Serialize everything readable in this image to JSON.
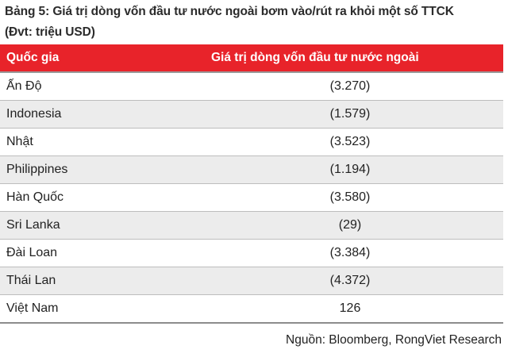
{
  "title_line1": "Bảng 5: Giá trị dòng vốn đầu tư nước ngoài bơm vào/rút ra khỏi một số TTCK",
  "title_line2": "(Đvt: triệu USD)",
  "table": {
    "headers": [
      "Quốc gia",
      "Giá trị dòng vốn đầu tư nước ngoài"
    ],
    "rows": [
      {
        "country": "Ấn Độ",
        "value": "(3.270)"
      },
      {
        "country": "Indonesia",
        "value": "(1.579)"
      },
      {
        "country": "Nhật",
        "value": "(3.523)"
      },
      {
        "country": "Philippines",
        "value": "(1.194)"
      },
      {
        "country": "Hàn Quốc",
        "value": "(3.580)"
      },
      {
        "country": "Sri Lanka",
        "value": "(29)"
      },
      {
        "country": "Đài Loan",
        "value": "(3.384)"
      },
      {
        "country": "Thái Lan",
        "value": "(4.372)"
      },
      {
        "country": "Việt Nam",
        "value": "126"
      }
    ]
  },
  "source": "Nguồn: Bloomberg, RongViet Research",
  "colors": {
    "header_bg": "#e8232a",
    "shade_row": "#ececec"
  }
}
